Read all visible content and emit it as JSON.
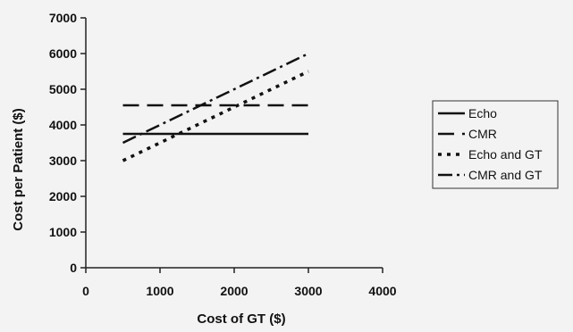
{
  "chart_data": {
    "type": "line",
    "title": "",
    "xlabel": "Cost of GT ($)",
    "ylabel": "Cost per Patient ($)",
    "xlim": [
      0,
      4000
    ],
    "ylim": [
      0,
      7000
    ],
    "xticks": [
      0,
      1000,
      2000,
      3000,
      4000
    ],
    "yticks": [
      0,
      1000,
      2000,
      3000,
      4000,
      5000,
      6000,
      7000
    ],
    "grid": false,
    "legend_position": "right",
    "series": [
      {
        "name": "Echo",
        "style": "solid",
        "color": "#111111",
        "x": [
          500,
          3000
        ],
        "y": [
          3750,
          3750
        ]
      },
      {
        "name": "CMR",
        "style": "long-dash",
        "color": "#111111",
        "x": [
          500,
          3000
        ],
        "y": [
          4550,
          4550
        ]
      },
      {
        "name": "Echo and GT",
        "style": "dotted",
        "color": "#111111",
        "x": [
          500,
          3000
        ],
        "y": [
          3000,
          5500
        ]
      },
      {
        "name": "CMR and GT",
        "style": "dash-dot",
        "color": "#111111",
        "x": [
          500,
          3000
        ],
        "y": [
          3500,
          6000
        ]
      }
    ]
  }
}
